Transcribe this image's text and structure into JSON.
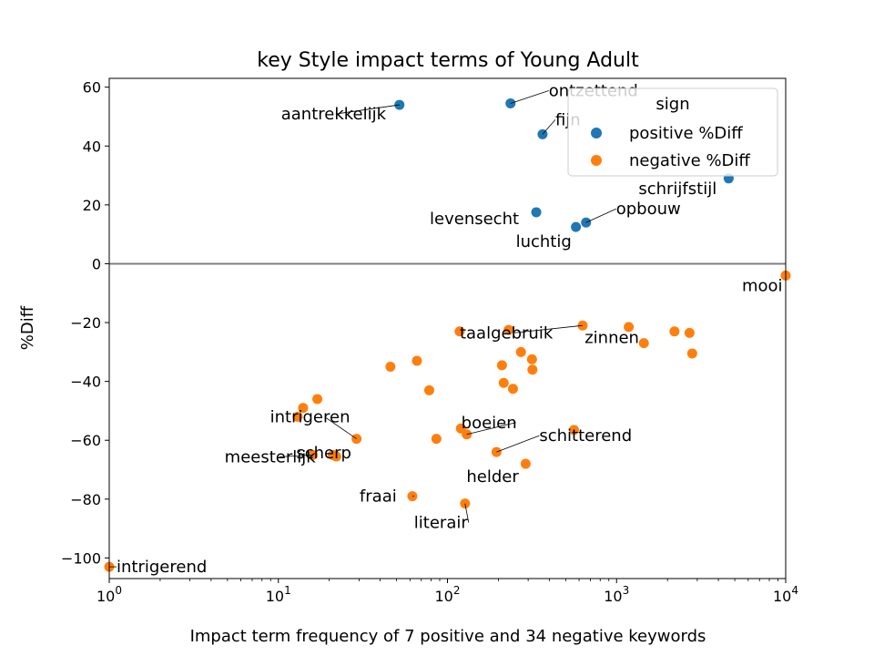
{
  "chart_data": {
    "type": "scatter",
    "title": "key Style impact terms of Young Adult",
    "xlabel": "Impact term frequency of 7 positive and 34 negative keywords",
    "ylabel": "%Diff",
    "xscale": "log",
    "xlim": [
      1,
      10000
    ],
    "ylim": [
      -107,
      63
    ],
    "x_ticks": [
      1,
      10,
      100,
      1000,
      10000
    ],
    "x_tick_labels": [
      {
        "base": "10",
        "exp": "0"
      },
      {
        "base": "10",
        "exp": "1"
      },
      {
        "base": "10",
        "exp": "2"
      },
      {
        "base": "10",
        "exp": "3"
      },
      {
        "base": "10",
        "exp": "4"
      }
    ],
    "y_ticks": [
      60,
      40,
      20,
      0,
      -20,
      -40,
      -60,
      -80,
      -100
    ],
    "y_tick_labels": [
      "60",
      "40",
      "20",
      "0",
      "−20",
      "−40",
      "−60",
      "−80",
      "−100"
    ],
    "zero_line": {
      "y": 0,
      "color": "#808080"
    },
    "legend": {
      "title": "sign",
      "position": "top-right",
      "entries": [
        {
          "label": "positive %Diff",
          "color": "#1f77b4"
        },
        {
          "label": "negative %Diff",
          "color": "#ff7f0e"
        }
      ]
    },
    "series": [
      {
        "name": "positive %Diff",
        "color": "#1f77b4",
        "points": [
          {
            "x": 52,
            "y": 54,
            "label": "aantrekkelijk"
          },
          {
            "x": 236,
            "y": 54.5,
            "label": "ontzettend"
          },
          {
            "x": 365,
            "y": 44,
            "label": "fijn"
          },
          {
            "x": 4600,
            "y": 29,
            "label": "schrijfstijl"
          },
          {
            "x": 335,
            "y": 17.5,
            "label": "levensecht"
          },
          {
            "x": 660,
            "y": 14,
            "label": "opbouw"
          },
          {
            "x": 575,
            "y": 12.5,
            "label": "luchtig"
          }
        ]
      },
      {
        "name": "negative %Diff",
        "color": "#ff7f0e",
        "points": [
          {
            "x": 10000,
            "y": -4,
            "label": "mooi"
          },
          {
            "x": 630,
            "y": -21,
            "label": "taalgebruik"
          },
          {
            "x": 1450,
            "y": -27,
            "label": "zinnen"
          },
          {
            "x": 29,
            "y": -59.5,
            "label": "intrigeren"
          },
          {
            "x": 16,
            "y": -65,
            "label": "meesterlijk"
          },
          {
            "x": 22,
            "y": -65.5,
            "label": "scherp"
          },
          {
            "x": 130,
            "y": -58,
            "label": "boeien"
          },
          {
            "x": 195,
            "y": -64,
            "label": "schitterend"
          },
          {
            "x": 290,
            "y": -68,
            "label": "helder"
          },
          {
            "x": 62,
            "y": -79,
            "label": "fraai"
          },
          {
            "x": 127,
            "y": -81.5,
            "label": "literair"
          },
          {
            "x": 1,
            "y": -103,
            "label": "intrigerend"
          },
          {
            "x": 118,
            "y": -23,
            "label": ""
          },
          {
            "x": 230,
            "y": -22.5,
            "label": ""
          },
          {
            "x": 1180,
            "y": -21.5,
            "label": ""
          },
          {
            "x": 2200,
            "y": -23,
            "label": ""
          },
          {
            "x": 2700,
            "y": -23.5,
            "label": ""
          },
          {
            "x": 2800,
            "y": -30.5,
            "label": ""
          },
          {
            "x": 272,
            "y": -30,
            "label": ""
          },
          {
            "x": 316,
            "y": -32.5,
            "label": ""
          },
          {
            "x": 210,
            "y": -34.5,
            "label": ""
          },
          {
            "x": 318,
            "y": -36,
            "label": ""
          },
          {
            "x": 46,
            "y": -35,
            "label": ""
          },
          {
            "x": 66,
            "y": -33,
            "label": ""
          },
          {
            "x": 78,
            "y": -43,
            "label": ""
          },
          {
            "x": 215,
            "y": -40.5,
            "label": ""
          },
          {
            "x": 244,
            "y": -42.5,
            "label": ""
          },
          {
            "x": 17,
            "y": -46,
            "label": ""
          },
          {
            "x": 14,
            "y": -49,
            "label": ""
          },
          {
            "x": 13,
            "y": -52,
            "label": ""
          },
          {
            "x": 120,
            "y": -56,
            "label": ""
          },
          {
            "x": 86,
            "y": -59.5,
            "label": ""
          },
          {
            "x": 560,
            "y": -56.5,
            "label": ""
          },
          {
            "x": 21,
            "y": -65,
            "label": ""
          }
        ]
      }
    ]
  }
}
